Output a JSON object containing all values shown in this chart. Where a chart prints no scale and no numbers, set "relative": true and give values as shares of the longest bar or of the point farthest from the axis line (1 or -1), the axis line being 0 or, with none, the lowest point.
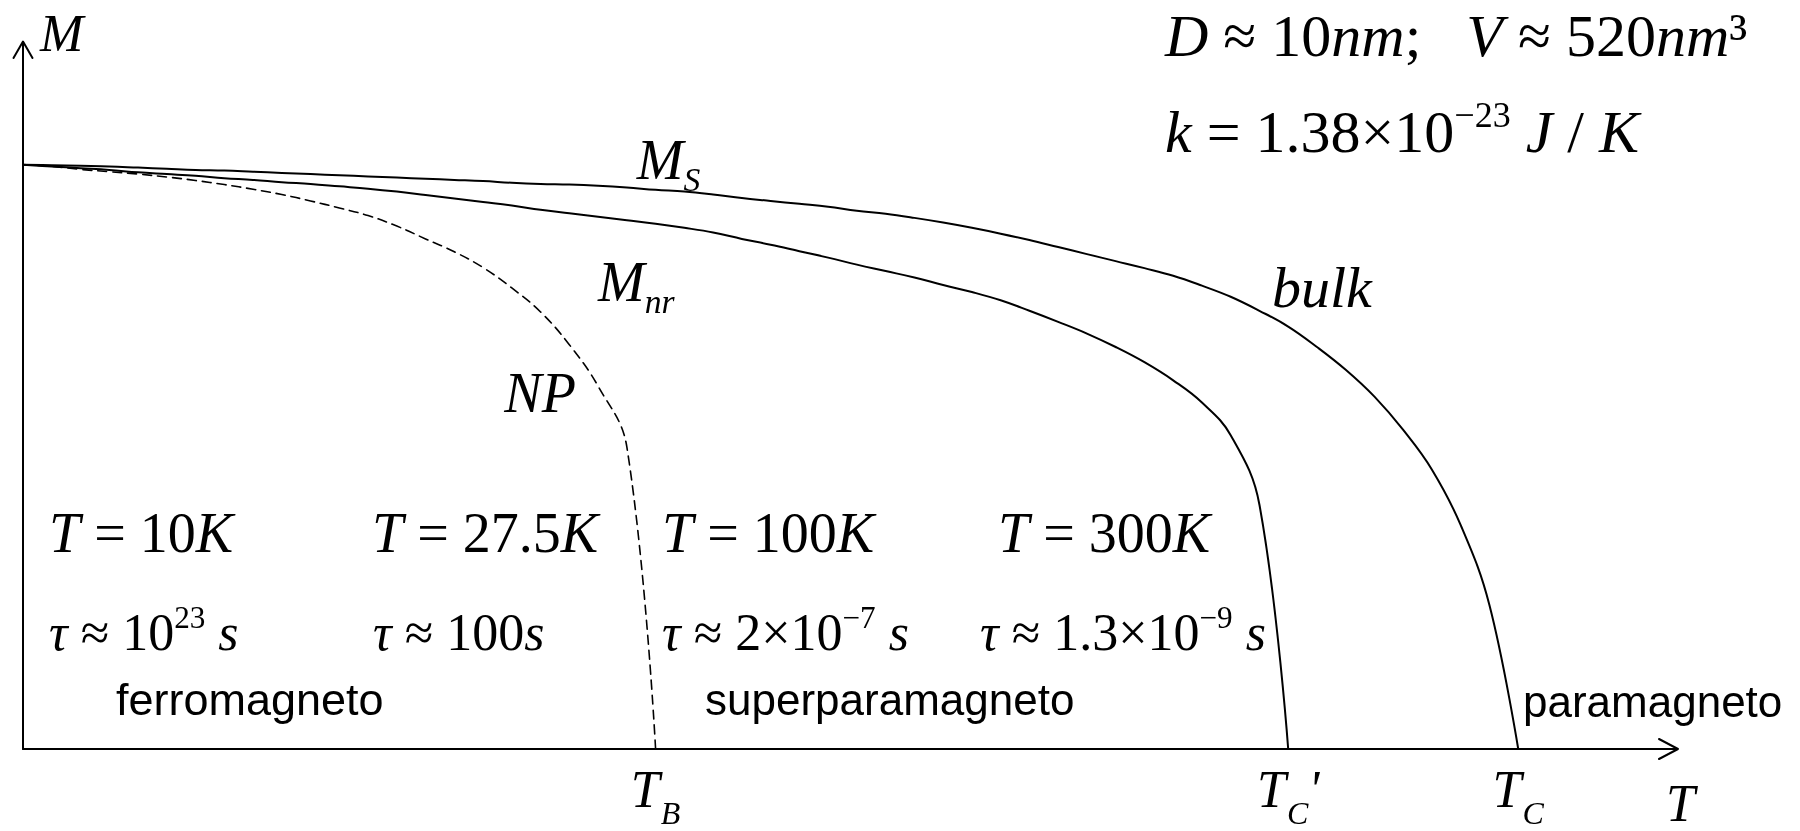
{
  "chart_data": {
    "type": "line",
    "xlabel": "T",
    "ylabel": "M",
    "relative": true,
    "grid": false,
    "tick_labels": "x",
    "marker": "none",
    "categories": [
      null,
      null,
      null,
      null,
      null,
      null,
      null,
      null,
      null,
      null,
      null,
      null,
      null,
      null,
      null,
      null,
      null,
      null,
      null,
      null,
      null,
      null,
      "T$_{B}$",
      null,
      null,
      null,
      null,
      null,
      null,
      null,
      null,
      null,
      null,
      null,
      null,
      null,
      null,
      null,
      null,
      null,
      null,
      null,
      null,
      null,
      "T$_{C}$'",
      null,
      null,
      null,
      null,
      null,
      null,
      null,
      "T$_{C}$",
      null,
      null,
      null,
      null,
      null
    ],
    "series": [
      {
        "name": "M$_{S}$",
        "color": "#000000",
        "line_style": "solid",
        "values": [
          1.0,
          0.999,
          0.998,
          0.997,
          0.995,
          0.993,
          0.991,
          0.99,
          0.988,
          0.986,
          0.984,
          0.982,
          0.98,
          0.978,
          0.976,
          0.974,
          0.972,
          0.969,
          0.967,
          0.966,
          0.964,
          0.961,
          0.957,
          0.954,
          0.949,
          0.943,
          0.938,
          0.933,
          0.928,
          0.921,
          0.916,
          0.909,
          0.901,
          0.892,
          0.882,
          0.871,
          0.859,
          0.847,
          0.835,
          0.823,
          0.81,
          0.793,
          0.774,
          0.75,
          0.723,
          0.688,
          0.649,
          0.603,
          0.546,
          0.478,
          0.383,
          0.246,
          0,
          null,
          null,
          null,
          null,
          null
        ]
      },
      {
        "name": "M$_{nr}$",
        "color": "#000000",
        "line_style": "solid",
        "values": [
          1.0,
          0.997,
          0.994,
          0.991,
          0.987,
          0.984,
          0.981,
          0.977,
          0.974,
          0.97,
          0.967,
          0.963,
          0.959,
          0.954,
          0.948,
          0.942,
          0.936,
          0.93,
          0.923,
          0.917,
          0.911,
          0.905,
          0.899,
          0.892,
          0.884,
          0.873,
          0.863,
          0.852,
          0.841,
          0.829,
          0.818,
          0.807,
          0.794,
          0.782,
          0.768,
          0.75,
          0.731,
          0.711,
          0.688,
          0.662,
          0.631,
          0.593,
          0.537,
          0.418,
          0,
          null,
          null,
          null,
          null,
          null,
          null,
          null,
          null,
          null,
          null,
          null,
          null,
          null
        ]
      },
      {
        "name": "NP",
        "color": "#000000",
        "line_style": "dashed",
        "values": [
          1.0,
          0.997,
          0.992,
          0.988,
          0.984,
          0.979,
          0.973,
          0.966,
          0.958,
          0.949,
          0.938,
          0.926,
          0.913,
          0.895,
          0.873,
          0.851,
          0.824,
          0.789,
          0.748,
          0.692,
          0.621,
          0.517,
          0,
          null,
          null,
          null,
          null,
          null,
          null,
          null,
          null,
          null,
          null,
          null,
          null,
          null,
          null,
          null,
          null,
          null,
          null,
          null,
          null,
          null,
          null,
          null,
          null,
          null,
          null,
          null,
          null,
          null,
          null,
          null,
          null,
          null,
          null,
          null
        ]
      }
    ],
    "annotations": [
      "D ≈ 10nm;   V ≈ 520nm³",
      "k = 1.38×10$^{−23}$ J / K",
      "bulk",
      "T = 10K",
      "τ ≈ 10$^{23}$ s",
      "T = 27.5K",
      "τ ≈ 100s",
      "T = 100K",
      "τ ≈ 2×10$^{−7}$ s",
      "T = 300K",
      "τ ≈ 1.3×10$^{−9}$ s",
      "ferromagneto",
      "superparamagneto",
      "paramagneto"
    ]
  }
}
